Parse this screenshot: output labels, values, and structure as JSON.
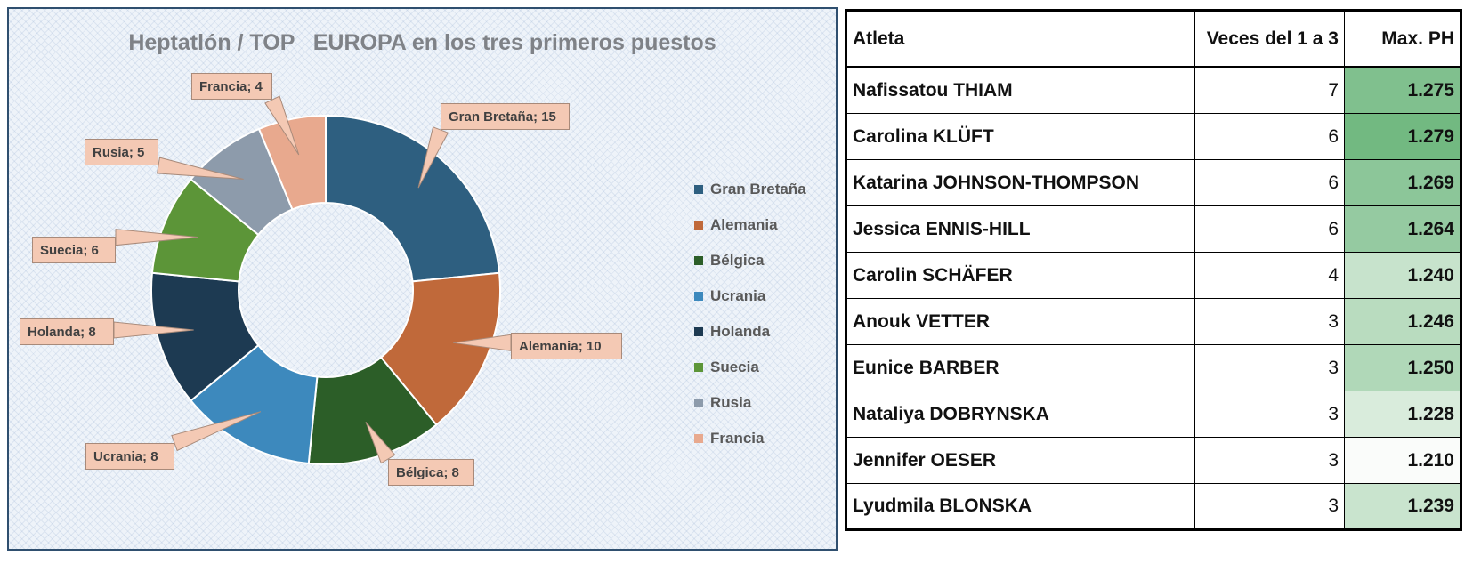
{
  "chart_data": {
    "type": "pie",
    "title": "Heptatlón / TOP   EUROPA en los tres primeros puestos",
    "categories": [
      "Gran Bretaña",
      "Alemania",
      "Bélgica",
      "Ucrania",
      "Holanda",
      "Suecia",
      "Rusia",
      "Francia"
    ],
    "values": [
      15,
      10,
      8,
      8,
      8,
      6,
      5,
      4
    ],
    "colors": [
      "#2e5f80",
      "#c0693a",
      "#2c5e28",
      "#3d89bd",
      "#1d3a52",
      "#5c9538",
      "#8d9bab",
      "#e8a98e"
    ],
    "labels": [
      "Gran Bretaña; 15",
      "Alemania; 10",
      "Bélgica; 8",
      "Ucrania; 8",
      "Holanda; 8",
      "Suecia; 6",
      "Rusia; 5",
      "Francia; 4"
    ],
    "donut": true,
    "legend_position": "right"
  },
  "table": {
    "headers": [
      "Atleta",
      "Veces del 1 a 3",
      "Max. PH"
    ],
    "rows": [
      {
        "name": "Nafissatou THIAM",
        "times": "7",
        "ph": "1.275",
        "shade": "#80c08e"
      },
      {
        "name": "Carolina KLÜFT",
        "times": "6",
        "ph": "1.279",
        "shade": "#72b981"
      },
      {
        "name": "Katarina JOHNSON-THOMPSON",
        "times": "6",
        "ph": "1.269",
        "shade": "#8cc699"
      },
      {
        "name": "Jessica ENNIS-HILL",
        "times": "6",
        "ph": "1.264",
        "shade": "#95caa1"
      },
      {
        "name": "Carolin SCHÄFER",
        "times": "4",
        "ph": "1.240",
        "shade": "#c7e3cc"
      },
      {
        "name": "Anouk VETTER",
        "times": "3",
        "ph": "1.246",
        "shade": "#b9dcbf"
      },
      {
        "name": "Eunice BARBER",
        "times": "3",
        "ph": "1.250",
        "shade": "#b0d8b8"
      },
      {
        "name": "Nataliya DOBRYNSKA",
        "times": "3",
        "ph": "1.228",
        "shade": "#d9ecdc"
      },
      {
        "name": "Jennifer OESER",
        "times": "3",
        "ph": "1.210",
        "shade": "#fafcfa"
      },
      {
        "name": "Lyudmila BLONSKA",
        "times": "3",
        "ph": "1.239",
        "shade": "#c9e4ce"
      }
    ]
  }
}
